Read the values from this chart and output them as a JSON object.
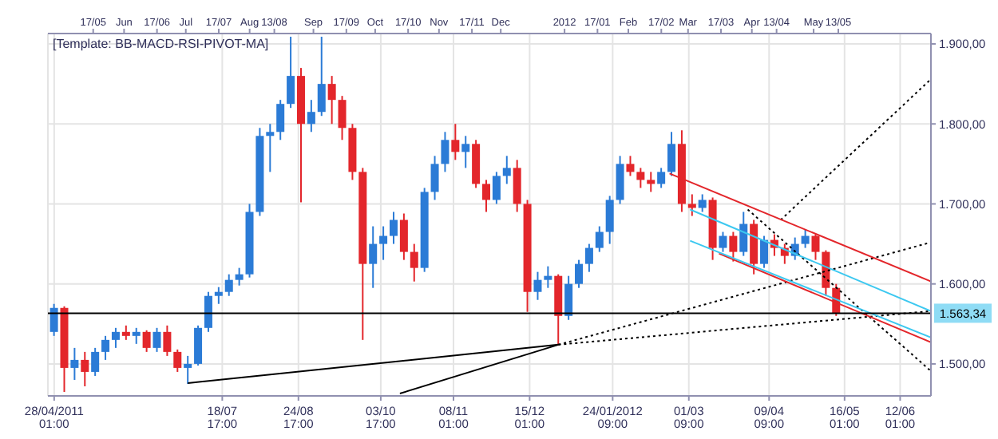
{
  "chart_data": {
    "type": "candlestick",
    "annotations": [
      "[Template: BB-MACD-RSI-PIVOT-MA]"
    ],
    "x": [
      "2011-04-28",
      "2011-05-03",
      "2011-05-08",
      "2011-05-13",
      "2011-05-18",
      "2011-05-23",
      "2011-05-28",
      "2011-06-02",
      "2011-06-07",
      "2011-06-12",
      "2011-06-17",
      "2011-06-22",
      "2011-06-27",
      "2011-07-02",
      "2011-07-07",
      "2011-07-12",
      "2011-07-17",
      "2011-07-22",
      "2011-07-27",
      "2011-08-01",
      "2011-08-06",
      "2011-08-11",
      "2011-08-16",
      "2011-08-21",
      "2011-08-26",
      "2011-08-31",
      "2011-09-05",
      "2011-09-10",
      "2011-09-15",
      "2011-09-20",
      "2011-09-25",
      "2011-09-30",
      "2011-10-05",
      "2011-10-10",
      "2011-10-15",
      "2011-10-20",
      "2011-10-25",
      "2011-10-30",
      "2011-11-04",
      "2011-11-09",
      "2011-11-14",
      "2011-11-19",
      "2011-11-24",
      "2011-11-29",
      "2011-12-04",
      "2011-12-09",
      "2011-12-14",
      "2011-12-19",
      "2011-12-24",
      "2011-12-29",
      "2012-01-03",
      "2012-01-08",
      "2012-01-13",
      "2012-01-18",
      "2012-01-23",
      "2012-01-28",
      "2012-02-02",
      "2012-02-07",
      "2012-02-12",
      "2012-02-17",
      "2012-02-22",
      "2012-02-27",
      "2012-03-03",
      "2012-03-08",
      "2012-03-13",
      "2012-03-18",
      "2012-03-23",
      "2012-03-28",
      "2012-04-02",
      "2012-04-07",
      "2012-04-12",
      "2012-04-17",
      "2012-04-22",
      "2012-04-27",
      "2012-05-02",
      "2012-05-07",
      "2012-05-12"
    ],
    "ohlc": [
      [
        1540,
        1575,
        1535,
        1570
      ],
      [
        1570,
        1572,
        1465,
        1495
      ],
      [
        1495,
        1520,
        1480,
        1505
      ],
      [
        1505,
        1515,
        1472,
        1490
      ],
      [
        1490,
        1520,
        1485,
        1515
      ],
      [
        1515,
        1535,
        1505,
        1530
      ],
      [
        1530,
        1545,
        1520,
        1540
      ],
      [
        1540,
        1548,
        1530,
        1535
      ],
      [
        1535,
        1545,
        1525,
        1540
      ],
      [
        1540,
        1542,
        1515,
        1520
      ],
      [
        1520,
        1545,
        1515,
        1540
      ],
      [
        1540,
        1548,
        1510,
        1515
      ],
      [
        1515,
        1518,
        1490,
        1495
      ],
      [
        1495,
        1510,
        1475,
        1500
      ],
      [
        1500,
        1548,
        1498,
        1545
      ],
      [
        1545,
        1590,
        1540,
        1585
      ],
      [
        1585,
        1596,
        1575,
        1590
      ],
      [
        1590,
        1612,
        1585,
        1605
      ],
      [
        1605,
        1620,
        1598,
        1612
      ],
      [
        1612,
        1700,
        1608,
        1690
      ],
      [
        1690,
        1795,
        1685,
        1785
      ],
      [
        1785,
        1800,
        1740,
        1790
      ],
      [
        1790,
        1830,
        1780,
        1825
      ],
      [
        1825,
        1909,
        1820,
        1860
      ],
      [
        1860,
        1870,
        1702,
        1800
      ],
      [
        1800,
        1830,
        1790,
        1815
      ],
      [
        1815,
        1909,
        1810,
        1850
      ],
      [
        1850,
        1860,
        1800,
        1830
      ],
      [
        1830,
        1835,
        1780,
        1795
      ],
      [
        1795,
        1800,
        1730,
        1740
      ],
      [
        1740,
        1745,
        1530,
        1625
      ],
      [
        1625,
        1672,
        1595,
        1650
      ],
      [
        1650,
        1672,
        1630,
        1660
      ],
      [
        1660,
        1690,
        1650,
        1680
      ],
      [
        1680,
        1688,
        1630,
        1640
      ],
      [
        1640,
        1650,
        1603,
        1620
      ],
      [
        1620,
        1720,
        1615,
        1715
      ],
      [
        1715,
        1760,
        1705,
        1750
      ],
      [
        1750,
        1790,
        1740,
        1780
      ],
      [
        1780,
        1800,
        1755,
        1765
      ],
      [
        1765,
        1785,
        1745,
        1775
      ],
      [
        1775,
        1780,
        1720,
        1725
      ],
      [
        1725,
        1730,
        1690,
        1705
      ],
      [
        1705,
        1740,
        1700,
        1735
      ],
      [
        1735,
        1760,
        1725,
        1745
      ],
      [
        1745,
        1755,
        1690,
        1700
      ],
      [
        1700,
        1705,
        1565,
        1590
      ],
      [
        1590,
        1615,
        1580,
        1605
      ],
      [
        1605,
        1622,
        1595,
        1610
      ],
      [
        1610,
        1612,
        1523,
        1560
      ],
      [
        1560,
        1610,
        1555,
        1600
      ],
      [
        1600,
        1630,
        1595,
        1625
      ],
      [
        1625,
        1650,
        1615,
        1645
      ],
      [
        1645,
        1672,
        1640,
        1665
      ],
      [
        1665,
        1710,
        1650,
        1705
      ],
      [
        1705,
        1760,
        1700,
        1750
      ],
      [
        1750,
        1760,
        1735,
        1740
      ],
      [
        1740,
        1745,
        1720,
        1730
      ],
      [
        1730,
        1740,
        1715,
        1725
      ],
      [
        1725,
        1745,
        1720,
        1740
      ],
      [
        1740,
        1790,
        1735,
        1775
      ],
      [
        1775,
        1792,
        1690,
        1700
      ],
      [
        1700,
        1712,
        1685,
        1695
      ],
      [
        1695,
        1712,
        1690,
        1705
      ],
      [
        1705,
        1708,
        1630,
        1645
      ],
      [
        1645,
        1665,
        1640,
        1660
      ],
      [
        1660,
        1665,
        1628,
        1640
      ],
      [
        1640,
        1690,
        1635,
        1675
      ],
      [
        1675,
        1680,
        1612,
        1625
      ],
      [
        1625,
        1660,
        1620,
        1655
      ],
      [
        1655,
        1662,
        1635,
        1645
      ],
      [
        1645,
        1650,
        1625,
        1635
      ],
      [
        1635,
        1658,
        1630,
        1650
      ],
      [
        1650,
        1668,
        1645,
        1660
      ],
      [
        1660,
        1662,
        1630,
        1640
      ],
      [
        1640,
        1642,
        1585,
        1595
      ],
      [
        1595,
        1600,
        1560,
        1563
      ]
    ],
    "colors": [
      "#2b7bd6",
      "#e3262b",
      "#2b7bd6",
      "#e3262b",
      "#2b7bd6",
      "#2b7bd6",
      "#2b7bd6",
      "#e3262b",
      "#2b7bd6",
      "#e3262b",
      "#2b7bd6",
      "#e3262b",
      "#e3262b",
      "#2b7bd6",
      "#2b7bd6",
      "#2b7bd6",
      "#2b7bd6",
      "#2b7bd6",
      "#2b7bd6",
      "#2b7bd6",
      "#2b7bd6",
      "#2b7bd6",
      "#2b7bd6",
      "#2b7bd6",
      "#e3262b",
      "#2b7bd6",
      "#2b7bd6",
      "#e3262b",
      "#e3262b",
      "#e3262b",
      "#e3262b",
      "#2b7bd6",
      "#2b7bd6",
      "#2b7bd6",
      "#e3262b",
      "#e3262b",
      "#2b7bd6",
      "#2b7bd6",
      "#2b7bd6",
      "#e3262b",
      "#2b7bd6",
      "#e3262b",
      "#e3262b",
      "#2b7bd6",
      "#2b7bd6",
      "#e3262b",
      "#e3262b",
      "#2b7bd6",
      "#2b7bd6",
      "#e3262b",
      "#2b7bd6",
      "#2b7bd6",
      "#2b7bd6",
      "#2b7bd6",
      "#2b7bd6",
      "#2b7bd6",
      "#e3262b",
      "#e3262b",
      "#e3262b",
      "#2b7bd6",
      "#2b7bd6",
      "#e3262b",
      "#e3262b",
      "#2b7bd6",
      "#e3262b",
      "#2b7bd6",
      "#e3262b",
      "#2b7bd6",
      "#e3262b",
      "#2b7bd6",
      "#e3262b",
      "#e3262b",
      "#2b7bd6",
      "#2b7bd6",
      "#e3262b",
      "#e3262b",
      "#e3262b"
    ],
    "series": [
      {
        "type": "line",
        "x": [
          "2011-07-02",
          "2011-12-29"
        ],
        "values": [
          1476,
          1524
        ],
        "color": "#000000",
        "line_style": "solid"
      },
      {
        "type": "line",
        "x": [
          "2011-10-13",
          "2011-12-29"
        ],
        "values": [
          1463,
          1524
        ],
        "color": "#000000",
        "line_style": "solid"
      },
      {
        "type": "line",
        "x": [
          "2011-12-29",
          "2012-06-27"
        ],
        "values": [
          1524,
          1652
        ],
        "color": "#000000",
        "line_style": "dotted"
      },
      {
        "type": "line",
        "x": [
          "2011-12-29",
          "2012-06-27"
        ],
        "values": [
          1524,
          1566
        ],
        "color": "#000000",
        "line_style": "dotted"
      },
      {
        "type": "line",
        "x": [
          "2012-04-15",
          "2012-06-27"
        ],
        "values": [
          1680,
          1856
        ],
        "color": "#000000",
        "line_style": "dotted"
      },
      {
        "type": "line",
        "x": [
          "2012-03-30",
          "2012-06-27"
        ],
        "values": [
          1693,
          1491
        ],
        "color": "#000000",
        "line_style": "dotted"
      },
      {
        "type": "line",
        "x": [
          "2012-02-21",
          "2012-06-27"
        ],
        "values": [
          1738,
          1603
        ],
        "color": "#e3262b",
        "line_style": "solid"
      },
      {
        "type": "line",
        "x": [
          "2012-03-16",
          "2012-06-27"
        ],
        "values": [
          1638,
          1527
        ],
        "color": "#e3262b",
        "line_style": "solid"
      },
      {
        "type": "line",
        "x": [
          "2012-03-02",
          "2012-06-27"
        ],
        "values": [
          1693,
          1566
        ],
        "color": "#3cc8f0",
        "line_style": "solid"
      },
      {
        "type": "line",
        "x": [
          "2012-03-02",
          "2012-06-27"
        ],
        "values": [
          1654,
          1533
        ],
        "color": "#3cc8f0",
        "line_style": "solid"
      }
    ],
    "ref_lines": [
      {
        "axis": "y",
        "value": 1563.34,
        "label": "1.563,34",
        "color": "#000000"
      }
    ],
    "xlim": [
      "2011-04-25",
      "2012-06-27"
    ],
    "xticks": [
      {
        "value": "2011-04-28T01:00",
        "label": "28/04/2011 01:00"
      },
      {
        "value": "2011-07-18T17:00",
        "label": "18/07 17:00"
      },
      {
        "value": "2011-08-24T17:00",
        "label": "24/08 17:00"
      },
      {
        "value": "2011-10-03T17:00",
        "label": "03/10 17:00"
      },
      {
        "value": "2011-11-08T01:00",
        "label": "08/11 01:00"
      },
      {
        "value": "2011-12-15T01:00",
        "label": "15/12 01:00"
      },
      {
        "value": "2012-01-24T09:00",
        "label": "24/01/2012 09:00"
      },
      {
        "value": "2012-03-01T09:00",
        "label": "01/03 09:00"
      },
      {
        "value": "2012-04-09T09:00",
        "label": "09/04 09:00"
      },
      {
        "value": "2012-05-16T01:00",
        "label": "16/05 01:00"
      },
      {
        "value": "2012-06-12T01:00",
        "label": "12/06 01:00"
      }
    ],
    "x2lim": [
      "2011-04-25",
      "2012-06-27"
    ],
    "x2ticks": [
      {
        "value": "2011-05-17",
        "label": "17/05"
      },
      {
        "value": "2011-06-01",
        "label": "Jun"
      },
      {
        "value": "2011-06-17",
        "label": "17/06"
      },
      {
        "value": "2011-07-01",
        "label": "Jul"
      },
      {
        "value": "2011-07-17",
        "label": "17/07"
      },
      {
        "value": "2011-08-01",
        "label": "Aug"
      },
      {
        "value": "2011-08-13",
        "label": "13/08"
      },
      {
        "value": "2011-09-01",
        "label": "Sep"
      },
      {
        "value": "2011-09-17",
        "label": "17/09"
      },
      {
        "value": "2011-10-01",
        "label": "Oct"
      },
      {
        "value": "2011-10-17",
        "label": "17/10"
      },
      {
        "value": "2011-11-01",
        "label": "Nov"
      },
      {
        "value": "2011-11-17",
        "label": "17/11"
      },
      {
        "value": "2011-12-01",
        "label": "Dec"
      },
      {
        "value": "2012-01-01",
        "label": "2012"
      },
      {
        "value": "2012-01-17",
        "label": "17/01"
      },
      {
        "value": "2012-02-01",
        "label": "Feb"
      },
      {
        "value": "2012-02-17",
        "label": "17/02"
      },
      {
        "value": "2012-03-01",
        "label": "Mar"
      },
      {
        "value": "2012-03-17",
        "label": "17/03"
      },
      {
        "value": "2012-04-01",
        "label": "Apr"
      },
      {
        "value": "2012-04-13",
        "label": "13/04"
      },
      {
        "value": "2012-05-01",
        "label": "May"
      },
      {
        "value": "2012-05-13",
        "label": "13/05"
      }
    ],
    "ylim": [
      1460,
      1913
    ],
    "yticks": [
      {
        "value": 1500,
        "label": "1.500,00"
      },
      {
        "value": 1600,
        "label": "1.600,00"
      },
      {
        "value": 1700,
        "label": "1.700,00"
      },
      {
        "value": 1800,
        "label": "1.800,00"
      },
      {
        "value": 1900,
        "label": "1.900,00"
      }
    ],
    "grid": true
  }
}
